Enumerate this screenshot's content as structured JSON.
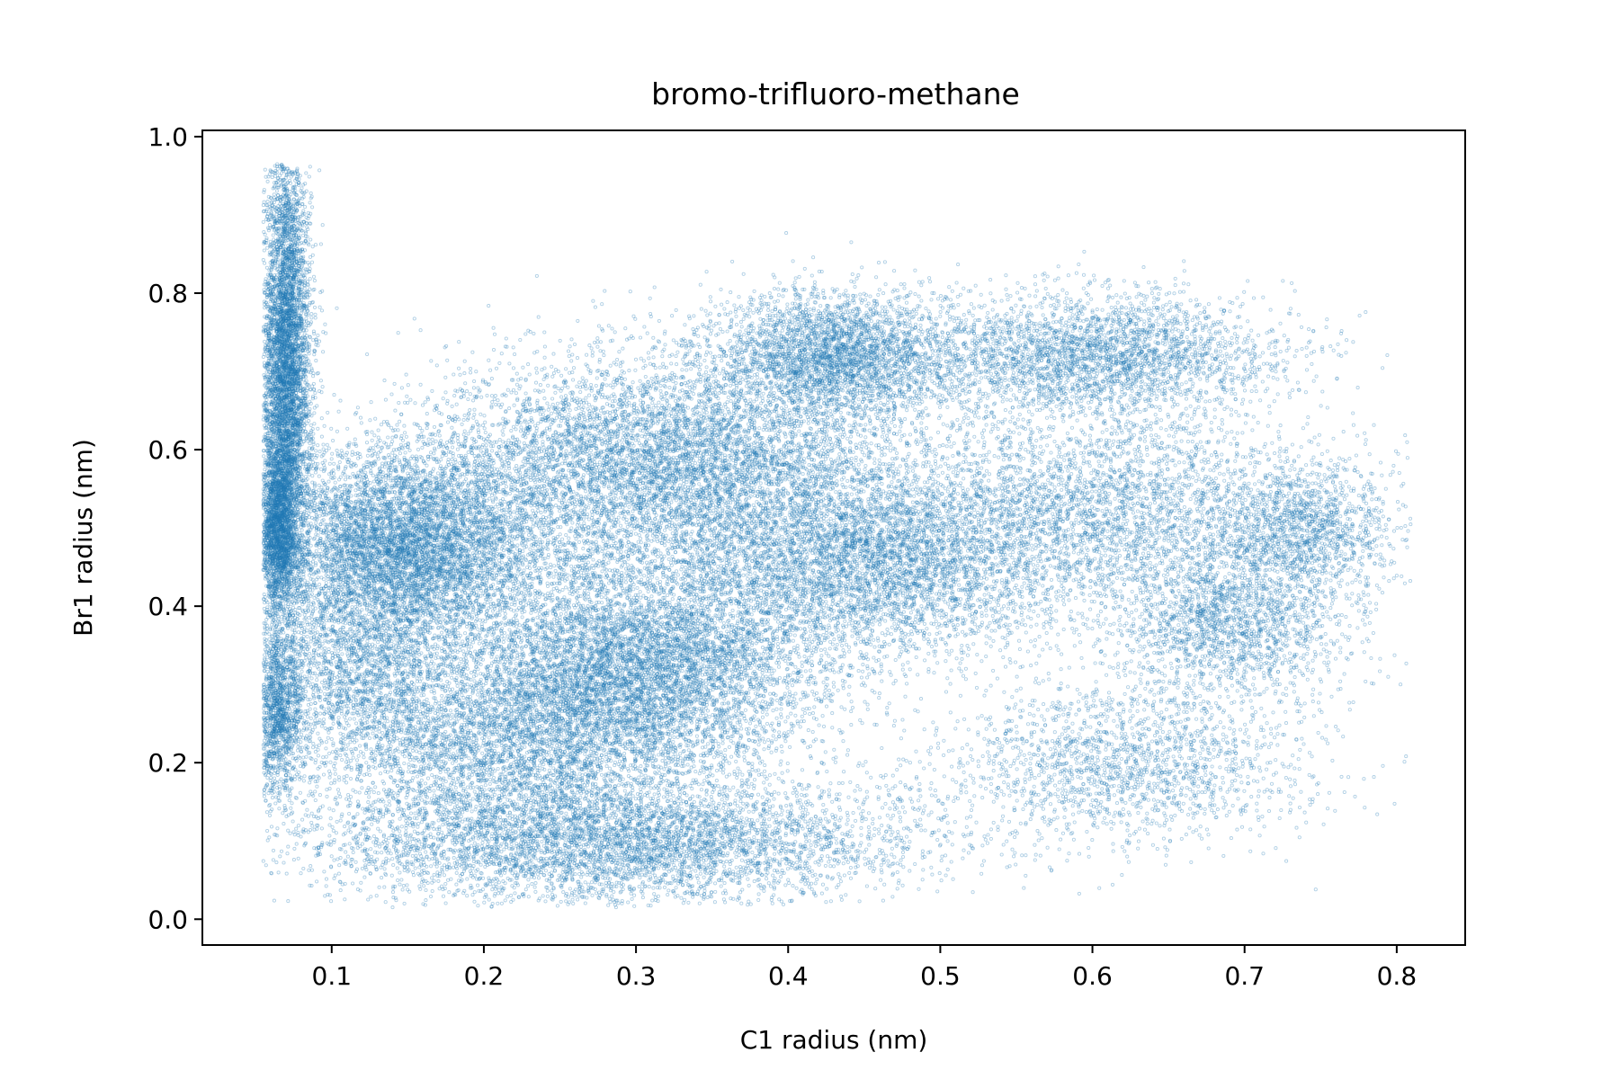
{
  "chart_data": {
    "type": "scatter",
    "title": "bromo-trifluoro-methane",
    "xlabel": "C1 radius (nm)",
    "ylabel": "Br1 radius (nm)",
    "xlim": [
      0.015,
      0.845
    ],
    "ylim": [
      -0.033,
      1.008
    ],
    "xticks": [
      0.1,
      0.2,
      0.3,
      0.4,
      0.5,
      0.6,
      0.7,
      0.8
    ],
    "xtick_labels": [
      "0.1",
      "0.2",
      "0.3",
      "0.4",
      "0.5",
      "0.6",
      "0.7",
      "0.8"
    ],
    "yticks": [
      0.0,
      0.2,
      0.4,
      0.6,
      0.8,
      1.0
    ],
    "ytick_labels": [
      "0.0",
      "0.2",
      "0.4",
      "0.6",
      "0.8",
      "1.0"
    ],
    "grid": false,
    "legend": "none",
    "marker_color": "#1f77b4",
    "marker": "small hollow circle, low alpha",
    "approx_point_count": 60000,
    "density_regions": [
      {
        "x": 0.07,
        "y": 0.7,
        "sx": 0.008,
        "sy": 0.14,
        "weight": 0.09
      },
      {
        "x": 0.065,
        "y": 0.5,
        "sx": 0.006,
        "sy": 0.05,
        "weight": 0.03
      },
      {
        "x": 0.065,
        "y": 0.26,
        "sx": 0.008,
        "sy": 0.05,
        "weight": 0.02
      },
      {
        "x": 0.15,
        "y": 0.48,
        "sx": 0.045,
        "sy": 0.06,
        "weight": 0.1
      },
      {
        "x": 0.12,
        "y": 0.32,
        "sx": 0.04,
        "sy": 0.08,
        "weight": 0.05
      },
      {
        "x": 0.3,
        "y": 0.32,
        "sx": 0.06,
        "sy": 0.07,
        "weight": 0.12
      },
      {
        "x": 0.32,
        "y": 0.58,
        "sx": 0.08,
        "sy": 0.07,
        "weight": 0.12
      },
      {
        "x": 0.43,
        "y": 0.72,
        "sx": 0.04,
        "sy": 0.04,
        "weight": 0.05
      },
      {
        "x": 0.45,
        "y": 0.45,
        "sx": 0.06,
        "sy": 0.06,
        "weight": 0.07
      },
      {
        "x": 0.28,
        "y": 0.1,
        "sx": 0.1,
        "sy": 0.04,
        "weight": 0.09
      },
      {
        "x": 0.6,
        "y": 0.72,
        "sx": 0.06,
        "sy": 0.04,
        "weight": 0.05
      },
      {
        "x": 0.6,
        "y": 0.52,
        "sx": 0.08,
        "sy": 0.07,
        "weight": 0.06
      },
      {
        "x": 0.69,
        "y": 0.38,
        "sx": 0.04,
        "sy": 0.05,
        "weight": 0.03
      },
      {
        "x": 0.62,
        "y": 0.2,
        "sx": 0.06,
        "sy": 0.05,
        "weight": 0.03
      },
      {
        "x": 0.74,
        "y": 0.5,
        "sx": 0.03,
        "sy": 0.04,
        "weight": 0.02
      },
      {
        "x": 0.22,
        "y": 0.22,
        "sx": 0.05,
        "sy": 0.05,
        "weight": 0.04
      }
    ]
  }
}
